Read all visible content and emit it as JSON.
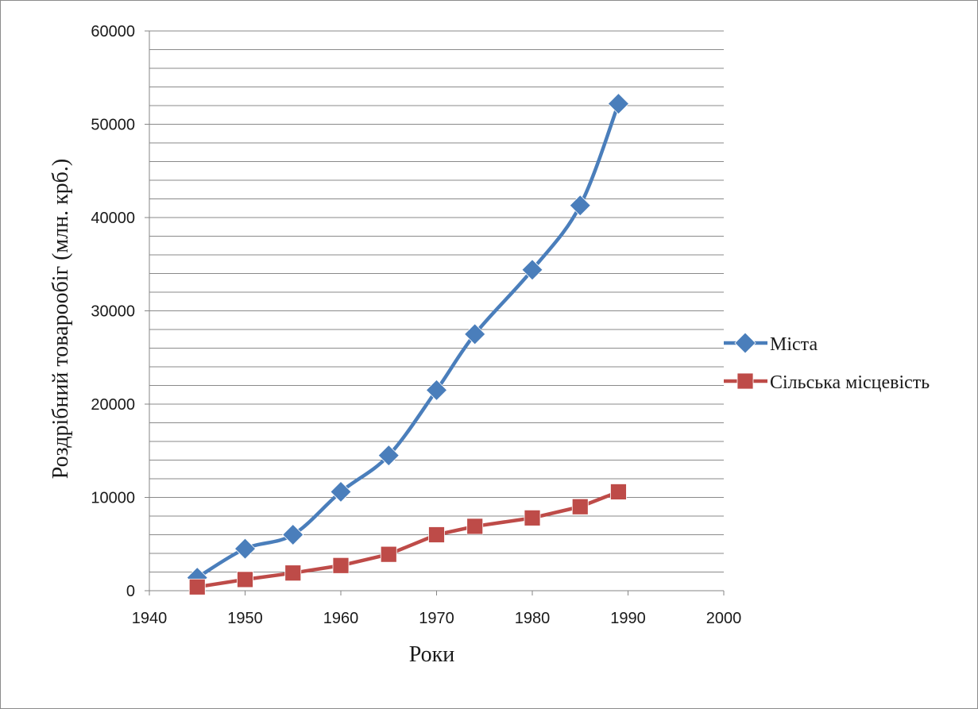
{
  "chart_data": {
    "type": "line",
    "title": "",
    "xlabel": "Роки",
    "ylabel": "Роздрібний товарообіг (млн. крб.)",
    "xlim": [
      1940,
      2000
    ],
    "ylim": [
      0,
      60000
    ],
    "x_ticks": [
      1940,
      1950,
      1960,
      1970,
      1980,
      1990,
      2000
    ],
    "y_ticks": [
      0,
      10000,
      20000,
      30000,
      40000,
      50000,
      60000
    ],
    "grid": "horizontal",
    "legend_position": "right",
    "series": [
      {
        "name": "Міста",
        "color": "#4a7ebb",
        "marker": "diamond",
        "smooth": true,
        "x": [
          1945,
          1950,
          1955,
          1960,
          1965,
          1970,
          1974,
          1980,
          1985,
          1989
        ],
        "y": [
          1400,
          4500,
          6000,
          10600,
          14500,
          21500,
          27500,
          34400,
          41300,
          52200
        ]
      },
      {
        "name": "Сільська місцевість",
        "color": "#be4b48",
        "marker": "square",
        "smooth": false,
        "x": [
          1945,
          1950,
          1955,
          1960,
          1965,
          1970,
          1974,
          1980,
          1985,
          1989
        ],
        "y": [
          400,
          1200,
          1900,
          2700,
          3900,
          6000,
          6900,
          7800,
          9000,
          10600
        ]
      }
    ]
  }
}
